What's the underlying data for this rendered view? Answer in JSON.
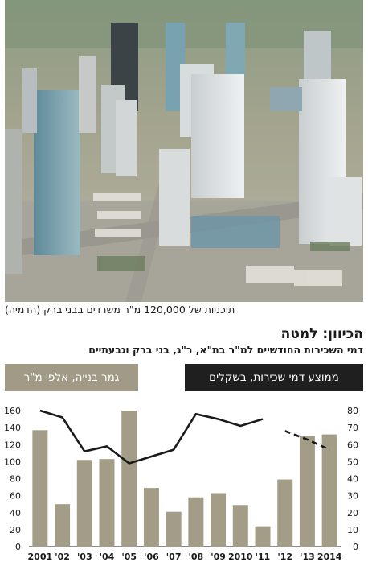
{
  "caption": "תוכניות של 120,000 מ\"ר משרדים בבני ברק (הדמיה)",
  "chart_title": "הכיוון: למטה",
  "chart_subtitle": "דמי השכירות החודשיים למ\"ר בת\"א, ר\"ג, בני ברק וגבעתיים",
  "legend_left": "גמר בנייה, אלפי מ\"ר",
  "legend_right": "ממוצע דמי שכירות, בשקלים",
  "colors": {
    "bar": "#a39d87",
    "line": "#1a1a1a",
    "badge_dark": "#1f1f1f",
    "badge_light": "#a09a86"
  },
  "chart_data": {
    "type": "bar",
    "categories": [
      "2001",
      "'02",
      "'03",
      "'04",
      "'05",
      "'06",
      "'07",
      "'08",
      "'09",
      "2010",
      "'11",
      "'12",
      "'13",
      "2014"
    ],
    "series": [
      {
        "axis": "left",
        "type": "bar",
        "values": [
          137,
          50,
          102,
          103,
          160,
          69,
          41,
          58,
          63,
          49,
          24,
          79,
          130,
          132
        ]
      },
      {
        "axis": "right",
        "type": "line",
        "values": [
          80,
          76,
          56,
          59,
          49,
          53,
          57,
          78,
          75,
          71,
          75,
          null,
          null,
          null
        ]
      },
      {
        "axis": "right",
        "type": "line",
        "dashed": true,
        "values": [
          null,
          null,
          null,
          null,
          null,
          null,
          null,
          null,
          null,
          null,
          null,
          68,
          63,
          57
        ]
      }
    ],
    "y_left": {
      "min": 0,
      "max": 160,
      "ticks": [
        0,
        20,
        40,
        60,
        80,
        100,
        120,
        140,
        160
      ]
    },
    "y_right": {
      "min": 0,
      "max": 80,
      "ticks": [
        0,
        10,
        20,
        30,
        40,
        50,
        60,
        70,
        80
      ]
    },
    "grid": false
  }
}
